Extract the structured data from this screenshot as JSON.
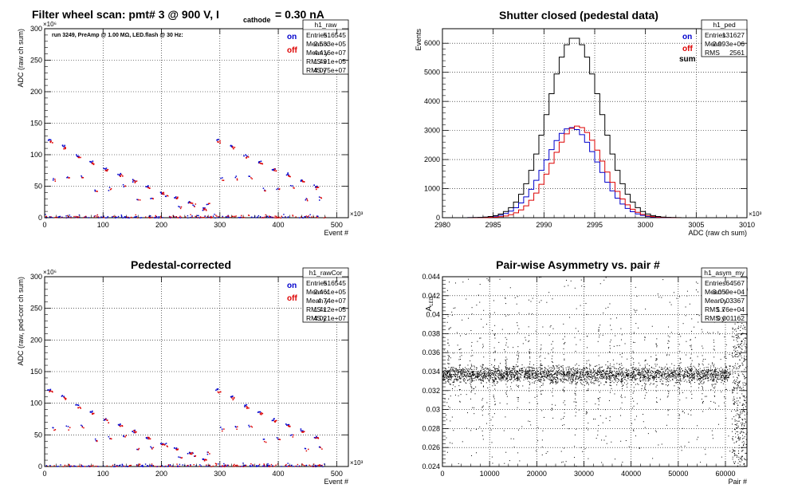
{
  "colors": {
    "on": "#0000cc",
    "off": "#dd0000",
    "sum": "#000000"
  },
  "panels": [
    {
      "id": "raw",
      "title": "",
      "header": {
        "main": "Filter wheel scan: pmt#   3 @   900 V, I",
        "sub": "cathode",
        "tail": "  = 0.30 nA"
      },
      "annotation": "run 3249, PreAmp @ 1.00 MΩ,  LED.flash @  30 Hz:",
      "legend": [
        "on",
        "off"
      ],
      "stats": {
        "name": "h1_raw",
        "rows": [
          [
            "Entries",
            "516545"
          ],
          [
            "Mean x",
            "2.583e+05"
          ],
          [
            "Mean y",
            "4.416e+07"
          ],
          [
            "RMS x",
            "1.491e+05"
          ],
          [
            "RMS y",
            "4.075e+07"
          ]
        ]
      }
    },
    {
      "id": "ped",
      "title": "Shutter closed (pedestal data)",
      "legend": [
        "on",
        "off",
        "sum"
      ],
      "stats": {
        "name": "h1_ped",
        "rows": [
          [
            "Entries",
            "131627"
          ],
          [
            "Mean",
            "2.993e+06"
          ],
          [
            "RMS",
            "2561"
          ]
        ]
      }
    },
    {
      "id": "cor",
      "title": "Pedestal-corrected",
      "legend": [
        "on",
        "off"
      ],
      "stats": {
        "name": "h1_rawCor",
        "rows": [
          [
            "Entries",
            "516545"
          ],
          [
            "Mean x",
            "2.461e+05"
          ],
          [
            "Mean y",
            "4.74e+07"
          ],
          [
            "RMS x",
            "1.412e+05"
          ],
          [
            "RMS y",
            "4.021e+07"
          ]
        ]
      }
    },
    {
      "id": "asym",
      "title": "Pair-wise Asymmetry vs. pair #",
      "legend": [],
      "stats": {
        "name": "h1_asym_my",
        "rows": [
          [
            "Entries",
            "64567"
          ],
          [
            "Mean x",
            "3.059e+04"
          ],
          [
            "Mean y",
            "0.03367"
          ],
          [
            "RMS x",
            "1.76e+04"
          ],
          [
            "RMS y",
            "0.001162"
          ]
        ]
      }
    }
  ],
  "chart_data": [
    {
      "type": "scatter",
      "title": "Filter wheel scan: pmt#   3 @   900 V, I cathode = 0.30 nA",
      "xlabel": "Event #",
      "ylabel": "ADC (raw ch sum)",
      "x_exponent": "×10³",
      "y_exponent": "×10⁶",
      "xlim": [
        0,
        520
      ],
      "ylim": [
        0,
        300
      ],
      "x_ticks": [
        0,
        100,
        200,
        300,
        400,
        500
      ],
      "y_ticks": [
        0,
        50,
        100,
        150,
        200,
        250,
        300
      ],
      "data_x_max": 480,
      "step_period": 24,
      "levels": [
        125,
        115,
        100,
        90,
        78,
        70,
        60,
        50,
        40,
        33,
        25,
        15
      ],
      "series": [
        {
          "name": "on"
        },
        {
          "name": "off"
        }
      ]
    },
    {
      "type": "histogram",
      "title": "Shutter closed (pedestal data)",
      "xlabel": "ADC (raw ch sum)",
      "ylabel": "Events",
      "x_exponent": "×10³",
      "xlim": [
        2980,
        3010
      ],
      "ylim": [
        0,
        6500
      ],
      "x_ticks": [
        2980,
        2985,
        2990,
        2995,
        3000,
        3005,
        3010
      ],
      "y_ticks": [
        0,
        1000,
        2000,
        3000,
        4000,
        5000,
        6000
      ],
      "series": [
        {
          "name": "on",
          "mean": 2992.7,
          "sigma": 2.6,
          "peak": 3100
        },
        {
          "name": "off",
          "mean": 2993.3,
          "sigma": 2.5,
          "peak": 3150
        },
        {
          "name": "sum",
          "mean": 2993.0,
          "sigma": 2.6,
          "peak": 6200
        }
      ]
    },
    {
      "type": "scatter",
      "title": "Pedestal-corrected",
      "xlabel": "Event #",
      "ylabel": "ADC (raw, ped-corr ch sum)",
      "x_exponent": "×10³",
      "y_exponent": "×10⁶",
      "xlim": [
        0,
        520
      ],
      "ylim": [
        0,
        300
      ],
      "x_ticks": [
        0,
        100,
        200,
        300,
        400,
        500
      ],
      "y_ticks": [
        0,
        50,
        100,
        150,
        200,
        250,
        300
      ],
      "data_x_max": 480,
      "step_period": 24,
      "levels": [
        122,
        112,
        97,
        87,
        75,
        67,
        57,
        47,
        37,
        30,
        22,
        12
      ],
      "series": [
        {
          "name": "on"
        },
        {
          "name": "off"
        }
      ]
    },
    {
      "type": "scatter",
      "title": "Pair-wise Asymmetry vs. pair #",
      "xlabel": "Pair #",
      "ylabel": "A_LED",
      "xlim": [
        0,
        64567
      ],
      "ylim": [
        0.024,
        0.044
      ],
      "x_ticks": [
        0,
        10000,
        20000,
        30000,
        40000,
        50000,
        60000
      ],
      "y_ticks": [
        0.024,
        0.026,
        0.028,
        0.03,
        0.032,
        0.034,
        0.036,
        0.038,
        0.04,
        0.042,
        0.044
      ],
      "band_center": 0.0337,
      "band_halfwidth": 0.0008,
      "spike_period": 2450
    }
  ]
}
